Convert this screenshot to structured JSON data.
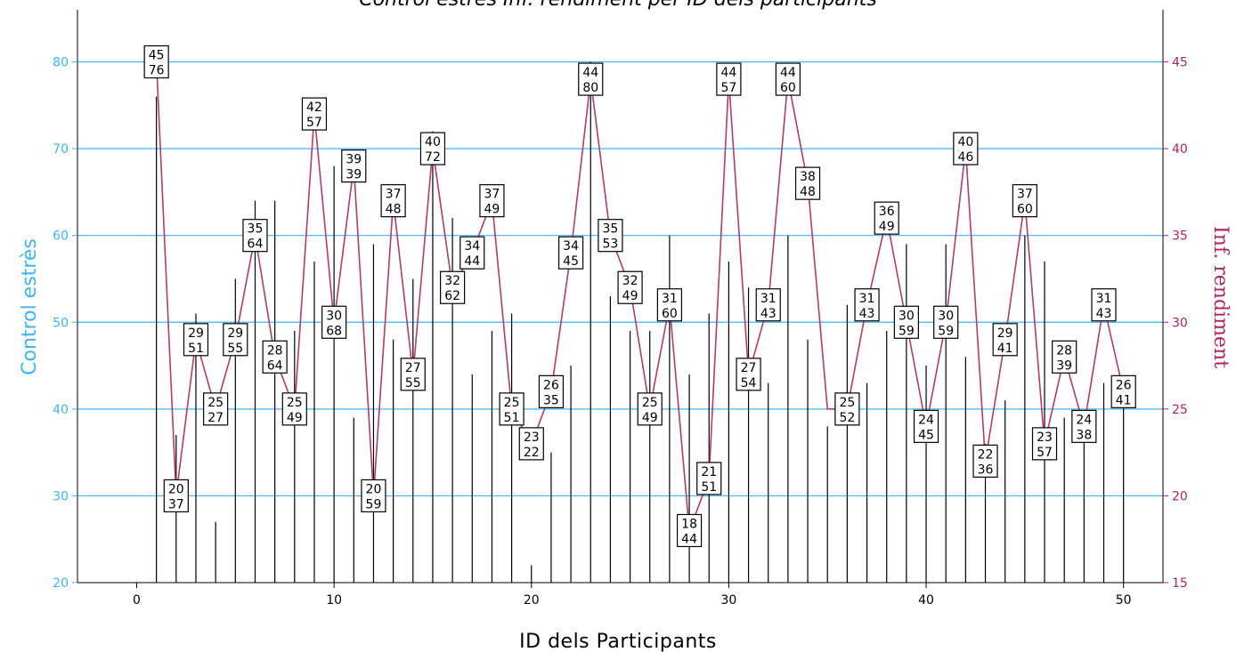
{
  "chart_data": {
    "type": "line",
    "title": "Control estrès Inf. rendiment per ID dels participants",
    "xlabel": "ID  dels Participants",
    "ylabel_left": "Control estrès",
    "ylabel_right": "Inf. rendiment",
    "xlim": [
      -3,
      52
    ],
    "ylim_left": [
      20,
      86
    ],
    "ylim_right": [
      15,
      48
    ],
    "x_ticks": [
      0,
      10,
      20,
      30,
      40,
      50
    ],
    "y_left_ticks": [
      20,
      30,
      40,
      50,
      60,
      70,
      80
    ],
    "y_right_ticks": [
      15,
      20,
      25,
      30,
      35,
      40,
      45
    ],
    "grid": "horizontal",
    "colors": {
      "left_axis": "#3fb5f2",
      "right_axis": "#ad2560",
      "line": "#b43a6a",
      "grid": "#3fb5f2",
      "spikes": "#000000"
    },
    "series": [
      {
        "name": "Control estrès",
        "style": "spike",
        "x": [
          1,
          2,
          3,
          4,
          5,
          6,
          7,
          8,
          9,
          10,
          11,
          12,
          13,
          14,
          15,
          16,
          17,
          18,
          19,
          20,
          21,
          22,
          23,
          24,
          25,
          26,
          27,
          28,
          29,
          30,
          31,
          32,
          33,
          34,
          35,
          36,
          37,
          38,
          39,
          40,
          41,
          42,
          43,
          44,
          45,
          46,
          47,
          48,
          49,
          50
        ],
        "values": [
          76,
          37,
          51,
          27,
          55,
          64,
          64,
          49,
          57,
          68,
          39,
          59,
          48,
          55,
          72,
          62,
          44,
          49,
          51,
          22,
          35,
          45,
          80,
          53,
          49,
          49,
          60,
          44,
          51,
          57,
          54,
          43,
          60,
          48,
          38,
          52,
          43,
          49,
          59,
          45,
          59,
          46,
          36,
          41,
          60,
          57,
          39,
          38,
          43,
          41
        ]
      },
      {
        "name": "Inf. rendiment",
        "style": "line",
        "x": [
          1,
          2,
          3,
          4,
          5,
          6,
          7,
          8,
          9,
          10,
          11,
          12,
          13,
          14,
          15,
          16,
          17,
          18,
          19,
          20,
          21,
          22,
          23,
          24,
          25,
          26,
          27,
          28,
          29,
          30,
          31,
          32,
          33,
          34,
          35,
          36,
          37,
          38,
          39,
          40,
          41,
          42,
          43,
          44,
          45,
          46,
          47,
          48,
          49,
          50
        ],
        "values": [
          45,
          20,
          29,
          25,
          29,
          35,
          28,
          25,
          42,
          30,
          39,
          20,
          37,
          27,
          40,
          32,
          34,
          37,
          25,
          23,
          26,
          34,
          44,
          35,
          32,
          25,
          31,
          18,
          21,
          44,
          27,
          31,
          44,
          38,
          25,
          25,
          31,
          36,
          30,
          24,
          30,
          40,
          22,
          29,
          37,
          23,
          28,
          24,
          31,
          26
        ]
      }
    ],
    "point_labels": [
      {
        "x": 1,
        "top": "45",
        "bottom": "76"
      },
      {
        "x": 2,
        "top": "20",
        "bottom": "37"
      },
      {
        "x": 3,
        "top": "29",
        "bottom": "51"
      },
      {
        "x": 4,
        "top": "25",
        "bottom": "27"
      },
      {
        "x": 5,
        "top": "29",
        "bottom": "55"
      },
      {
        "x": 6,
        "top": "35",
        "bottom": "64"
      },
      {
        "x": 7,
        "top": "28",
        "bottom": "64"
      },
      {
        "x": 8,
        "top": "25",
        "bottom": "49"
      },
      {
        "x": 9,
        "top": "42",
        "bottom": "57"
      },
      {
        "x": 10,
        "top": "30",
        "bottom": "68"
      },
      {
        "x": 11,
        "top": "39",
        "bottom": "39"
      },
      {
        "x": 12,
        "top": "20",
        "bottom": "59"
      },
      {
        "x": 13,
        "top": "37",
        "bottom": "48"
      },
      {
        "x": 14,
        "top": "27",
        "bottom": "55"
      },
      {
        "x": 15,
        "top": "40",
        "bottom": "72"
      },
      {
        "x": 16,
        "top": "32",
        "bottom": "62"
      },
      {
        "x": 17,
        "top": "34",
        "bottom": "44"
      },
      {
        "x": 18,
        "top": "37",
        "bottom": "49"
      },
      {
        "x": 19,
        "top": "25",
        "bottom": "51"
      },
      {
        "x": 20,
        "top": "23",
        "bottom": "22"
      },
      {
        "x": 21,
        "top": "26",
        "bottom": "35"
      },
      {
        "x": 22,
        "top": "34",
        "bottom": "45"
      },
      {
        "x": 23,
        "top": "44",
        "bottom": "80"
      },
      {
        "x": 24,
        "top": "35",
        "bottom": "53"
      },
      {
        "x": 25,
        "top": "32",
        "bottom": "49"
      },
      {
        "x": 26,
        "top": "25",
        "bottom": "49"
      },
      {
        "x": 27,
        "top": "31",
        "bottom": "60"
      },
      {
        "x": 28,
        "top": "18",
        "bottom": "44"
      },
      {
        "x": 29,
        "top": "21",
        "bottom": "51"
      },
      {
        "x": 30,
        "top": "44",
        "bottom": "57"
      },
      {
        "x": 31,
        "top": "27",
        "bottom": "54"
      },
      {
        "x": 32,
        "top": "31",
        "bottom": "43"
      },
      {
        "x": 33,
        "top": "44",
        "bottom": "60"
      },
      {
        "x": 34,
        "top": "38",
        "bottom": "48"
      },
      {
        "x": 36,
        "top": "25",
        "bottom": "52"
      },
      {
        "x": 37,
        "top": "31",
        "bottom": "43"
      },
      {
        "x": 38,
        "top": "36",
        "bottom": "49"
      },
      {
        "x": 39,
        "top": "30",
        "bottom": "59"
      },
      {
        "x": 40,
        "top": "24",
        "bottom": "45"
      },
      {
        "x": 41,
        "top": "30",
        "bottom": "59"
      },
      {
        "x": 42,
        "top": "40",
        "bottom": "46"
      },
      {
        "x": 43,
        "top": "22",
        "bottom": "36"
      },
      {
        "x": 44,
        "top": "29",
        "bottom": "41"
      },
      {
        "x": 45,
        "top": "37",
        "bottom": "60"
      },
      {
        "x": 46,
        "top": "23",
        "bottom": "57"
      },
      {
        "x": 47,
        "top": "28",
        "bottom": "39"
      },
      {
        "x": 48,
        "top": "24",
        "bottom": "38"
      },
      {
        "x": 49,
        "top": "31",
        "bottom": "43"
      },
      {
        "x": 50,
        "top": "26",
        "bottom": "41"
      }
    ]
  }
}
